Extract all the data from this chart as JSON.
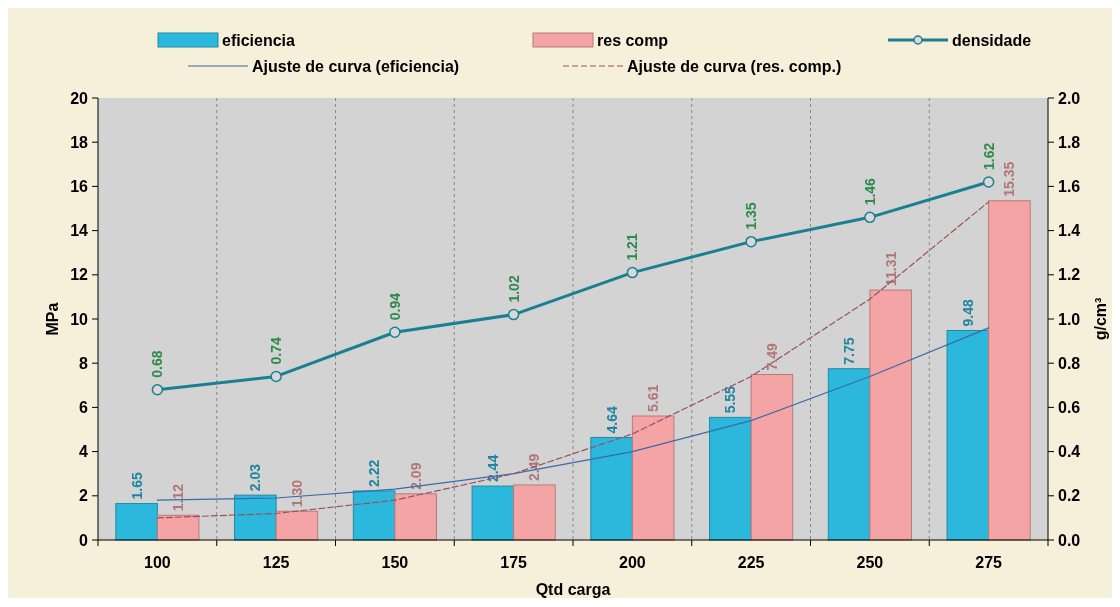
{
  "chart_data": {
    "type": "bar",
    "xlabel": "Qtd carga",
    "ylabel": "MPa",
    "y2label": "g/cm³",
    "categories": [
      "100",
      "125",
      "150",
      "175",
      "200",
      "225",
      "250",
      "275"
    ],
    "series": [
      {
        "name": "eficiencia",
        "color": "#2bb8dc",
        "values": [
          1.65,
          2.03,
          2.22,
          2.44,
          4.64,
          5.55,
          7.75,
          9.48
        ],
        "value_labels": [
          "1.65",
          "2.03",
          "2.22",
          "2.44",
          "4.64",
          "5.55",
          "7.75",
          "9.48"
        ]
      },
      {
        "name": "res comp",
        "color": "#f4a4a4",
        "values": [
          1.12,
          1.3,
          2.09,
          2.49,
          5.61,
          7.49,
          11.31,
          15.35
        ],
        "value_labels": [
          "1.12",
          "1.30",
          "2.09",
          "2.49",
          "5.61",
          "7.49",
          "11.31",
          "15.35"
        ]
      },
      {
        "name": "densidade",
        "type": "line",
        "axis": "y2",
        "color": "#1a7f90",
        "marker": "circle",
        "values": [
          0.68,
          0.74,
          0.94,
          1.02,
          1.21,
          1.35,
          1.46,
          1.62
        ],
        "value_labels": [
          "0.68",
          "0.74",
          "0.94",
          "1.02",
          "1.21",
          "1.35",
          "1.46",
          "1.62"
        ]
      },
      {
        "name": "Ajuste de curva (eficiencia)",
        "type": "line",
        "color": "#3a6aa8",
        "line_style": "solid",
        "values": [
          1.8,
          1.9,
          2.3,
          3.0,
          4.0,
          5.4,
          7.4,
          9.6
        ]
      },
      {
        "name": "Ajuste de curva (res. comp.)",
        "type": "line",
        "color": "#9a5060",
        "line_style": "dashed",
        "values": [
          1.0,
          1.2,
          1.8,
          3.0,
          4.8,
          7.4,
          10.9,
          15.3
        ]
      }
    ],
    "ylim": [
      0,
      20
    ],
    "yticks": [
      0,
      2,
      4,
      6,
      8,
      10,
      12,
      14,
      16,
      18,
      20
    ],
    "y2lim": [
      0,
      2
    ],
    "y2ticks": [
      {
        "value": 0,
        "label": "0.0"
      },
      {
        "value": 0.2,
        "label": "0.2"
      },
      {
        "value": 0.4,
        "label": "0.4"
      },
      {
        "value": 0.6,
        "label": "0.6"
      },
      {
        "value": 0.8,
        "label": "0.8"
      },
      {
        "value": 1,
        "label": "1.0"
      },
      {
        "value": 1.2,
        "label": "1.2"
      },
      {
        "value": 1.4,
        "label": "1.4"
      },
      {
        "value": 1.6,
        "label": "1.6"
      },
      {
        "value": 1.8,
        "label": "1.8"
      },
      {
        "value": 2,
        "label": "2.0"
      }
    ],
    "grid": "x",
    "legend": "top"
  }
}
